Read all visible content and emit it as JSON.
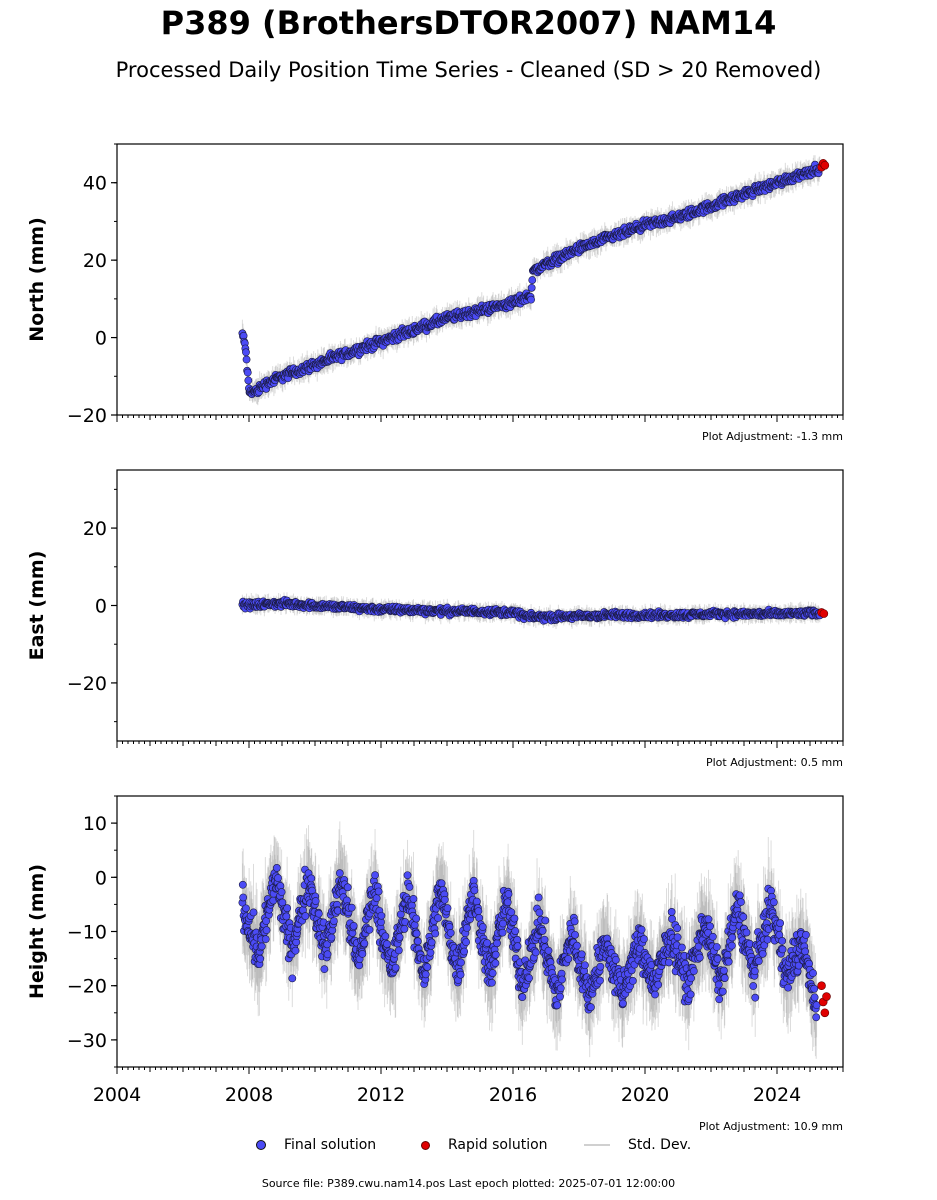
{
  "title": "P389 (BrothersDTOR2007) NAM14",
  "subtitle": "Processed Daily Position Time Series - Cleaned (SD > 20 Removed)",
  "legend": {
    "final": "Final solution",
    "rapid": "Rapid solution",
    "sd": "Std. Dev."
  },
  "colors": {
    "final": "#4b4bf5",
    "rapid": "#e00000",
    "sd": "#9a9a9a"
  },
  "source": "Source file: P389.cwu.nam14.pos  Last epoch plotted: 2025-07-01 12:00:00",
  "chart_data": [
    {
      "type": "scatter",
      "ylabel": "North (mm)",
      "adjustment": "Plot Adjustment: -1.3 mm",
      "xlim": [
        2004,
        2026
      ],
      "ylim": [
        -20,
        50
      ],
      "xticks": [
        2004,
        2008,
        2012,
        2016,
        2020,
        2024
      ],
      "yticks": [
        -20,
        0,
        20,
        40
      ],
      "show_xticklabels": false,
      "series": [
        {
          "kind": "final",
          "x": [
            2007.8,
            2007.9,
            2008.0,
            2008.2,
            2008.5,
            2009,
            2010,
            2011,
            2012,
            2013,
            2014,
            2015,
            2016,
            2016.55,
            2016.6,
            2017,
            2018,
            2019,
            2020,
            2021,
            2022,
            2023,
            2024,
            2025,
            2025.3
          ],
          "y": [
            1,
            -3,
            -14,
            -14,
            -12,
            -10,
            -7,
            -4,
            -1,
            2,
            5,
            7,
            9,
            11,
            17,
            19,
            23,
            26,
            29,
            31,
            34,
            37,
            40,
            43,
            44
          ]
        },
        {
          "kind": "rapid",
          "x": [
            2025.35,
            2025.4,
            2025.45
          ],
          "y": [
            44,
            45,
            44.5
          ]
        }
      ]
    },
    {
      "type": "scatter",
      "ylabel": "East (mm)",
      "adjustment": "Plot Adjustment: 0.5 mm",
      "xlim": [
        2004,
        2026
      ],
      "ylim": [
        -35,
        35
      ],
      "xticks": [
        2004,
        2008,
        2012,
        2016,
        2020,
        2024
      ],
      "yticks": [
        -20,
        0,
        20
      ],
      "show_xticklabels": false,
      "series": [
        {
          "kind": "final",
          "x": [
            2007.8,
            2009,
            2010,
            2011,
            2012,
            2013,
            2014,
            2015,
            2016,
            2016.5,
            2017,
            2018,
            2019,
            2020,
            2021,
            2022,
            2023,
            2024,
            2025,
            2025.3
          ],
          "y": [
            0,
            0.5,
            0,
            -0.5,
            -1,
            -1.2,
            -1.5,
            -1.5,
            -1.8,
            -3,
            -3,
            -2.8,
            -2.5,
            -2.5,
            -2.5,
            -2.2,
            -2.2,
            -2.2,
            -2,
            -2
          ]
        },
        {
          "kind": "rapid",
          "x": [
            2025.35,
            2025.42
          ],
          "y": [
            -1.8,
            -2.1
          ]
        }
      ]
    },
    {
      "type": "scatter",
      "ylabel": "Height (mm)",
      "adjustment": "Plot Adjustment: 10.9 mm",
      "xlim": [
        2004,
        2026
      ],
      "ylim": [
        -35,
        15
      ],
      "xticks": [
        2004,
        2008,
        2012,
        2016,
        2020,
        2024
      ],
      "yticks": [
        -30,
        -20,
        -10,
        0,
        10
      ],
      "xticklabels": [
        "2004",
        "2008",
        "2012",
        "2016",
        "2020",
        "2024"
      ],
      "show_xticklabels": true,
      "series": [
        {
          "kind": "final",
          "x": [
            2007.8,
            2008.3,
            2008.8,
            2009.3,
            2009.8,
            2010.3,
            2010.8,
            2011.3,
            2011.8,
            2012.3,
            2012.8,
            2013.3,
            2013.8,
            2014.3,
            2014.8,
            2015.3,
            2015.8,
            2016.3,
            2016.8,
            2017.3,
            2017.8,
            2018.3,
            2018.8,
            2019.3,
            2019.8,
            2020.3,
            2020.8,
            2021.3,
            2021.8,
            2022.3,
            2022.8,
            2023.3,
            2023.8,
            2024.3,
            2024.8,
            2025.2
          ],
          "y": [
            -5,
            -14,
            0,
            -14,
            0,
            -14,
            0,
            -16,
            -2,
            -18,
            -3,
            -18,
            -2,
            -17,
            -3,
            -18,
            -4,
            -20,
            -8,
            -22,
            -10,
            -22,
            -12,
            -22,
            -12,
            -20,
            -10,
            -20,
            -8,
            -20,
            -5,
            -18,
            -5,
            -18,
            -12,
            -25
          ]
        },
        {
          "kind": "rapid",
          "x": [
            2025.35,
            2025.4,
            2025.45,
            2025.5
          ],
          "y": [
            -20,
            -23,
            -25,
            -22
          ]
        }
      ]
    }
  ]
}
